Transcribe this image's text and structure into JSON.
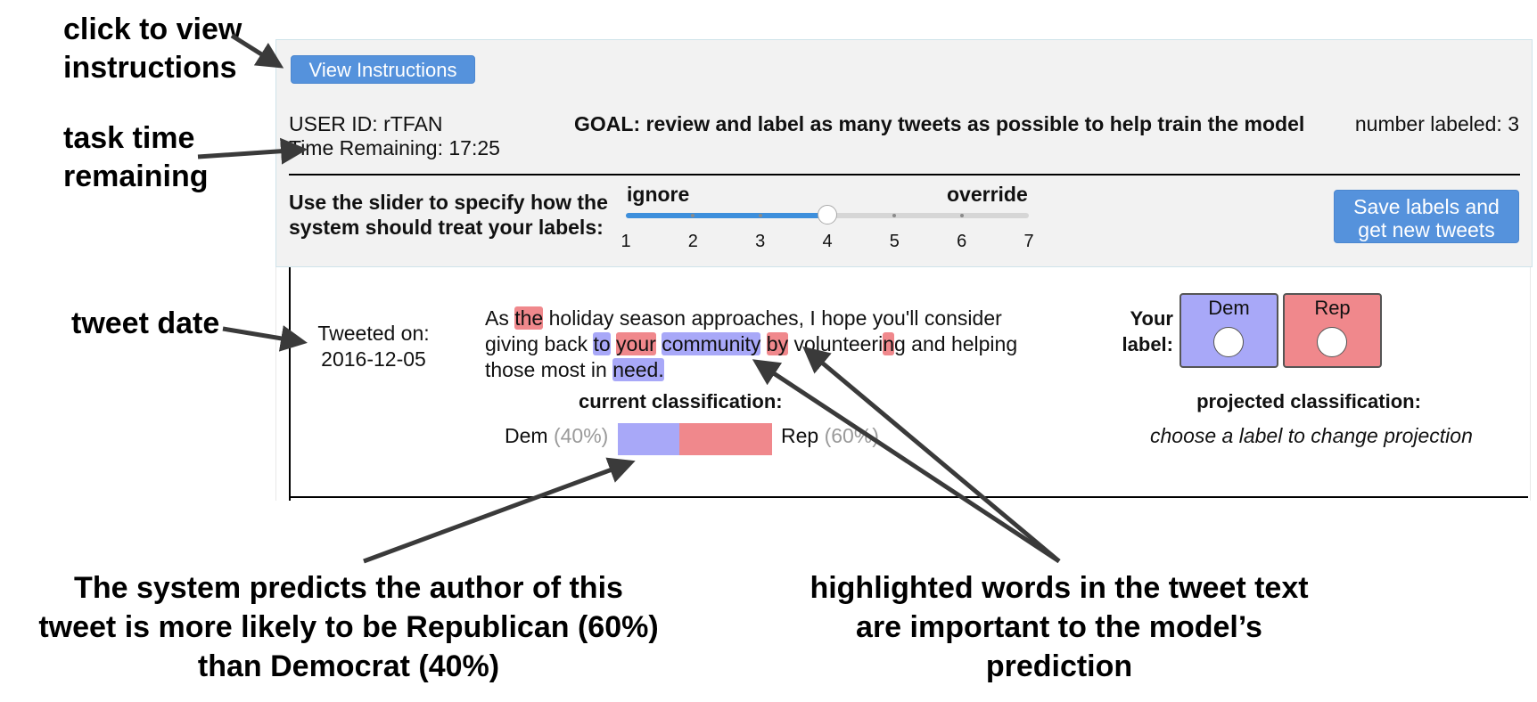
{
  "annotations": {
    "instructions": [
      "click to view",
      "instructions"
    ],
    "time": [
      "task time",
      "remaining"
    ],
    "date": "tweet date",
    "prediction_caption": [
      "The system predicts the author of this",
      "tweet is more likely to be Republican (60%)",
      "than Democrat (40%)"
    ],
    "highlight_caption": [
      "highlighted words in the tweet text",
      "are important to the model’s",
      "prediction"
    ]
  },
  "header": {
    "view_instructions_label": "View Instructions",
    "user_id": "USER ID: rTFAN",
    "time_remaining": "Time Remaining: 17:25",
    "goal": "GOAL: review and label as many tweets as possible to help train the model",
    "number_labeled": "number labeled: 3"
  },
  "slider": {
    "prompt": [
      "Use the slider to specify how the",
      "system should treat your labels:"
    ],
    "left_label": "ignore",
    "right_label": "override",
    "min": 1,
    "max": 7,
    "value": 4,
    "ticks": [
      "1",
      "2",
      "3",
      "4",
      "5",
      "6",
      "7"
    ]
  },
  "save_button_label": [
    "Save labels and",
    "get new tweets"
  ],
  "tweet": {
    "date_label": "Tweeted on:",
    "date": "2016-12-05",
    "tokens": [
      {
        "t": "As ",
        "h": ""
      },
      {
        "t": "the",
        "h": "rep"
      },
      {
        "t": " holiday season approaches, I hope you'll consider giving back ",
        "h": ""
      },
      {
        "t": "to",
        "h": "dem"
      },
      {
        "t": " ",
        "h": ""
      },
      {
        "t": "your",
        "h": "rep"
      },
      {
        "t": " ",
        "h": ""
      },
      {
        "t": "community",
        "h": "dem"
      },
      {
        "t": " ",
        "h": ""
      },
      {
        "t": "by",
        "h": "rep"
      },
      {
        "t": " volunteeri",
        "h": ""
      },
      {
        "t": "n",
        "h": "rep"
      },
      {
        "t": "g and helping those most in ",
        "h": ""
      },
      {
        "t": "need.",
        "h": "dem"
      }
    ]
  },
  "current_classification": {
    "title": "current classification:",
    "dem_label": "Dem",
    "dem_pct": "(40%)",
    "rep_label": "Rep",
    "rep_pct": "(60%)",
    "dem_value": 40,
    "rep_value": 60
  },
  "your_label": {
    "title": [
      "Your",
      "label:"
    ],
    "dem": "Dem",
    "rep": "Rep"
  },
  "projected_classification": {
    "title": "projected classification:",
    "text": "choose a label to change projection"
  },
  "colors": {
    "dem": "#a8a8f8",
    "rep": "#f0888c",
    "button": "#5592dc",
    "slider_fill": "#3d8fdc"
  }
}
